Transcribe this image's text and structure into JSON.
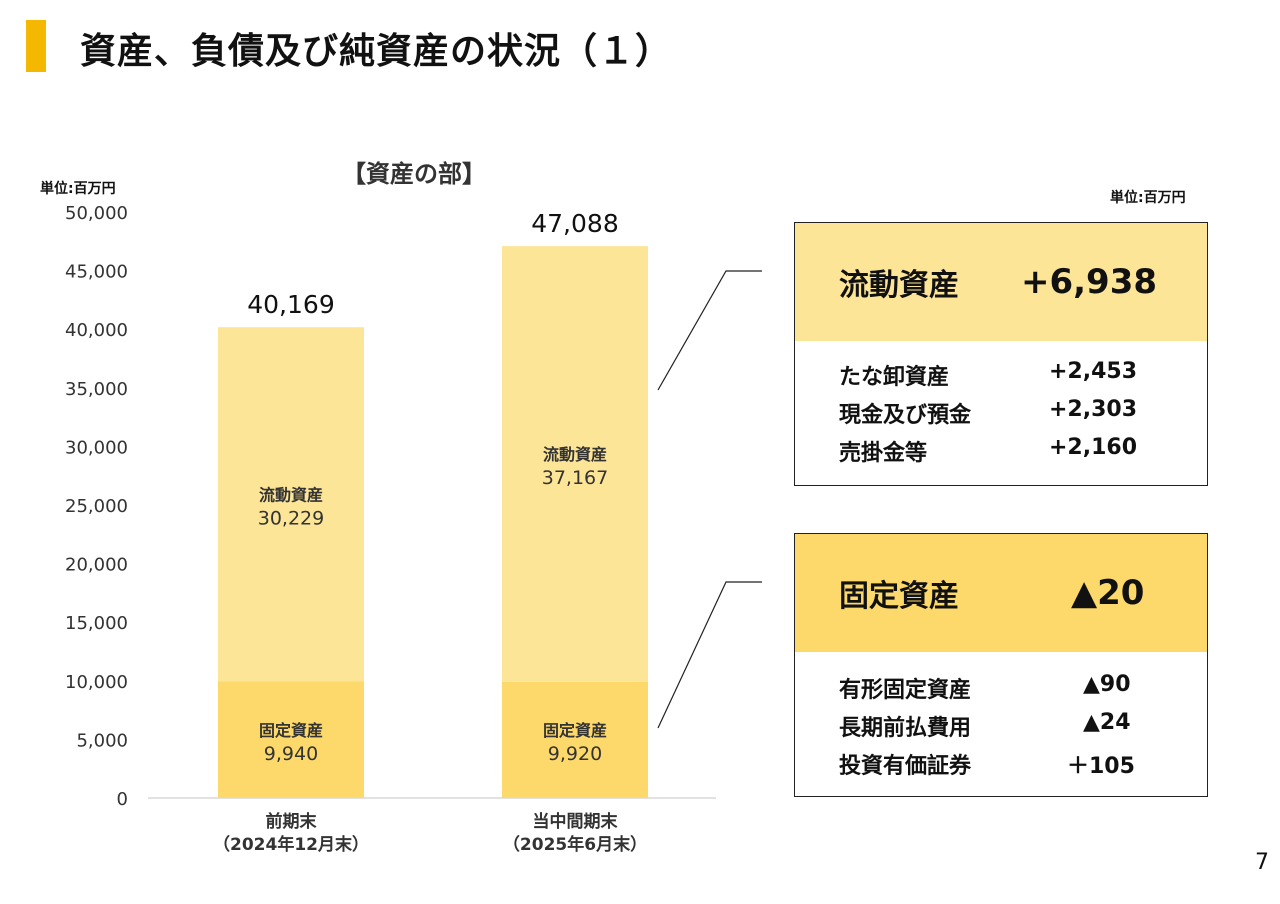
{
  "page": {
    "title": "資産、負債及び純資産の状況（１）",
    "unit_left": "単位:百万円",
    "unit_right": "単位:百万円",
    "page_number": "7"
  },
  "chart_data": {
    "type": "bar",
    "stacked": true,
    "title": "【資産の部】",
    "categories": [
      "前期末\n（2024年12月末）",
      "当中間期末\n（2025年6月末）"
    ],
    "category_lines": [
      [
        "前期末",
        "（2024年12月末）"
      ],
      [
        "当中間期末",
        "（2025年6月末）"
      ]
    ],
    "series": [
      {
        "name": "固定資産",
        "values": [
          9940,
          9920
        ],
        "labels": [
          "9,940",
          "9,920"
        ],
        "color": "#fdd96b"
      },
      {
        "name": "流動資産",
        "values": [
          30229,
          37167
        ],
        "labels": [
          "30,229",
          "37,167"
        ],
        "color": "#fde598"
      }
    ],
    "totals": [
      40169,
      47088
    ],
    "total_labels": [
      "40,169",
      "47,088"
    ],
    "ylim": [
      0,
      50000
    ],
    "yticks": [
      0,
      5000,
      10000,
      15000,
      20000,
      25000,
      30000,
      35000,
      40000,
      45000,
      50000
    ],
    "ytick_labels": [
      "0",
      "5,000",
      "10,000",
      "15,000",
      "20,000",
      "25,000",
      "30,000",
      "35,000",
      "40,000",
      "45,000",
      "50,000"
    ],
    "grid": false
  },
  "panels": {
    "current": {
      "title": "流動資産",
      "value": "+6,938",
      "header_color": "#fde598",
      "items": [
        {
          "label": "たな卸資産",
          "value": "+2,453"
        },
        {
          "label": "現金及び預金",
          "value": "+2,303"
        },
        {
          "label": "売掛金等",
          "value": "+2,160"
        }
      ]
    },
    "fixed": {
      "title": "固定資産",
      "value": "▲20",
      "header_color": "#fdd96b",
      "items": [
        {
          "label": "有形固定資産",
          "value": "▲90"
        },
        {
          "label": "長期前払費用",
          "value": "▲24"
        },
        {
          "label": "投資有価証券",
          "value": "＋105"
        }
      ]
    }
  }
}
